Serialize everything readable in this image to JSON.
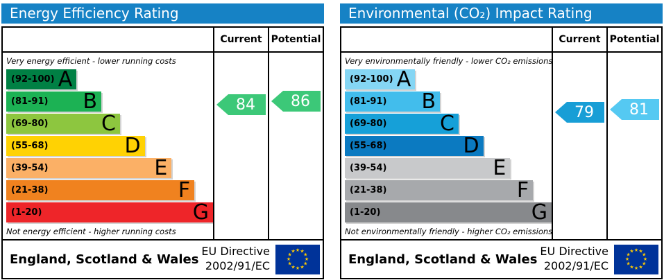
{
  "colors": {
    "header_bar": "#1682c5",
    "eu_flag_blue": "#003399",
    "eu_star_yellow": "#ffcc00"
  },
  "panels": [
    {
      "title": "Energy Efficiency Rating",
      "columns": {
        "current": "Current",
        "potential": "Potential"
      },
      "top_caption": "Very energy efficient - lower running costs",
      "bottom_caption": "Not energy efficient - higher running costs",
      "bands": [
        {
          "letter": "A",
          "range": "(92-100)",
          "color": "#008044",
          "width": "34%"
        },
        {
          "letter": "B",
          "range": "(81-91)",
          "color": "#1cb254",
          "width": "46%"
        },
        {
          "letter": "C",
          "range": "(69-80)",
          "color": "#8dc63f",
          "width": "55%"
        },
        {
          "letter": "D",
          "range": "(55-68)",
          "color": "#ffd203",
          "width": "67%"
        },
        {
          "letter": "E",
          "range": "(39-54)",
          "color": "#fbb066",
          "width": "80%"
        },
        {
          "letter": "F",
          "range": "(21-38)",
          "color": "#f0821f",
          "width": "91%"
        },
        {
          "letter": "G",
          "range": "(1-20)",
          "color": "#ee2529",
          "width": "100%"
        }
      ],
      "current": {
        "value": 84,
        "color": "#3cc878"
      },
      "potential": {
        "value": 86,
        "color": "#3cc878"
      },
      "footer": {
        "region": "England, Scotland & Wales",
        "directive_line1": "EU Directive",
        "directive_line2": "2002/91/EC"
      }
    },
    {
      "title": "Environmental (CO₂) Impact Rating",
      "columns": {
        "current": "Current",
        "potential": "Potential"
      },
      "top_caption": "Very environmentally friendly - lower CO₂ emissions",
      "bottom_caption": "Not environmentally friendly - higher CO₂ emissions",
      "bands": [
        {
          "letter": "A",
          "range": "(92-100)",
          "color": "#85d6f4",
          "width": "34%"
        },
        {
          "letter": "B",
          "range": "(81-91)",
          "color": "#42bdec",
          "width": "46%"
        },
        {
          "letter": "C",
          "range": "(69-80)",
          "color": "#16a0d8",
          "width": "55%"
        },
        {
          "letter": "D",
          "range": "(55-68)",
          "color": "#0b7ac1",
          "width": "67%"
        },
        {
          "letter": "E",
          "range": "(39-54)",
          "color": "#c8c9cb",
          "width": "80%"
        },
        {
          "letter": "F",
          "range": "(21-38)",
          "color": "#a7a9ac",
          "width": "91%"
        },
        {
          "letter": "G",
          "range": "(1-20)",
          "color": "#87898c",
          "width": "100%"
        }
      ],
      "current": {
        "value": 79,
        "color": "#189ed6"
      },
      "potential": {
        "value": 81,
        "color": "#55c9f2"
      },
      "footer": {
        "region": "England, Scotland & Wales",
        "directive_line1": "EU Directive",
        "directive_line2": "2002/91/EC"
      }
    }
  ],
  "chart_data": [
    {
      "type": "bar",
      "title": "Energy Efficiency Rating",
      "categories": [
        "A",
        "B",
        "C",
        "D",
        "E",
        "F",
        "G"
      ],
      "band_ranges": [
        "92-100",
        "81-91",
        "69-80",
        "55-68",
        "39-54",
        "21-38",
        "1-20"
      ],
      "scale": [
        1,
        100
      ],
      "current": 84,
      "current_band": "B",
      "potential": 86,
      "potential_band": "B",
      "top_note": "Very energy efficient - lower running costs",
      "bottom_note": "Not energy efficient - higher running costs"
    },
    {
      "type": "bar",
      "title": "Environmental (CO₂) Impact Rating",
      "categories": [
        "A",
        "B",
        "C",
        "D",
        "E",
        "F",
        "G"
      ],
      "band_ranges": [
        "92-100",
        "81-91",
        "69-80",
        "55-68",
        "39-54",
        "21-38",
        "1-20"
      ],
      "scale": [
        1,
        100
      ],
      "current": 79,
      "current_band": "C",
      "potential": 81,
      "potential_band": "B",
      "top_note": "Very environmentally friendly - lower CO₂ emissions",
      "bottom_note": "Not environmentally friendly - higher CO₂ emissions"
    }
  ]
}
